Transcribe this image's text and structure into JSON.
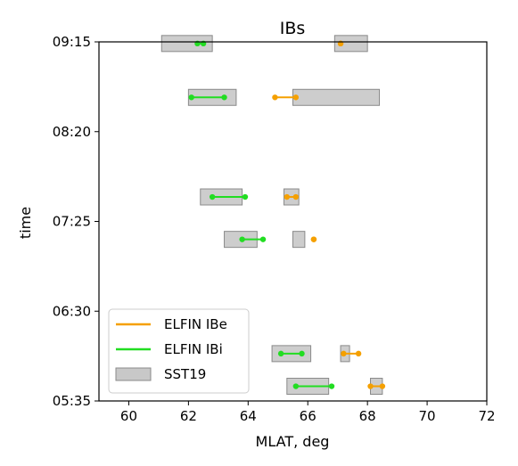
{
  "chart_data": {
    "type": "interval",
    "title": "IBs",
    "xlabel": "MLAT, deg",
    "ylabel": "time",
    "xlim": [
      59,
      72
    ],
    "ylim": [
      "05:35",
      "09:15"
    ],
    "xticks": [
      "60",
      "62",
      "64",
      "66",
      "68",
      "70",
      "72"
    ],
    "yticks": [
      "05:35",
      "06:30",
      "07:25",
      "08:20",
      "09:15"
    ],
    "legend": {
      "placement": "lower-left",
      "entries": [
        {
          "label": "ELFIN IBe",
          "color": "#f5a000"
        },
        {
          "label": "ELFIN IBi",
          "color": "#22dd22"
        },
        {
          "label": "SST19",
          "color": "#c8c8c8"
        }
      ]
    },
    "sst19_boxes": [
      {
        "time": "09:14",
        "mlat_start": 61.1,
        "mlat_end": 62.8
      },
      {
        "time": "09:14",
        "mlat_start": 66.9,
        "mlat_end": 68.0
      },
      {
        "time": "08:41",
        "mlat_start": 62.0,
        "mlat_end": 63.6
      },
      {
        "time": "08:41",
        "mlat_start": 65.5,
        "mlat_end": 68.4
      },
      {
        "time": "07:40",
        "mlat_start": 62.4,
        "mlat_end": 63.8
      },
      {
        "time": "07:40",
        "mlat_start": 65.2,
        "mlat_end": 65.7
      },
      {
        "time": "07:14",
        "mlat_start": 63.2,
        "mlat_end": 64.3
      },
      {
        "time": "07:14",
        "mlat_start": 65.5,
        "mlat_end": 65.9
      },
      {
        "time": "06:04",
        "mlat_start": 64.8,
        "mlat_end": 66.1
      },
      {
        "time": "06:04",
        "mlat_start": 67.1,
        "mlat_end": 67.4
      },
      {
        "time": "05:44",
        "mlat_start": 65.3,
        "mlat_end": 66.7
      },
      {
        "time": "05:44",
        "mlat_start": 68.1,
        "mlat_end": 68.5
      }
    ],
    "series": [
      {
        "name": "ELFIN IBe",
        "segments": [
          {
            "time": "09:14",
            "mlat": [
              67.1,
              67.1
            ]
          },
          {
            "time": "08:41",
            "mlat": [
              64.9,
              65.6
            ]
          },
          {
            "time": "07:40",
            "mlat": [
              65.3,
              65.6
            ]
          },
          {
            "time": "07:14",
            "mlat": [
              66.2,
              66.2
            ]
          },
          {
            "time": "06:04",
            "mlat": [
              67.2,
              67.7
            ]
          },
          {
            "time": "05:44",
            "mlat": [
              68.1,
              68.5
            ]
          }
        ]
      },
      {
        "name": "ELFIN IBi",
        "segments": [
          {
            "time": "09:14",
            "mlat": [
              62.3,
              62.5
            ]
          },
          {
            "time": "08:41",
            "mlat": [
              62.1,
              63.2
            ]
          },
          {
            "time": "07:40",
            "mlat": [
              62.8,
              63.9
            ]
          },
          {
            "time": "07:14",
            "mlat": [
              63.8,
              64.5
            ]
          },
          {
            "time": "06:04",
            "mlat": [
              65.1,
              65.8
            ]
          },
          {
            "time": "05:44",
            "mlat": [
              65.6,
              66.8
            ]
          }
        ]
      }
    ]
  }
}
